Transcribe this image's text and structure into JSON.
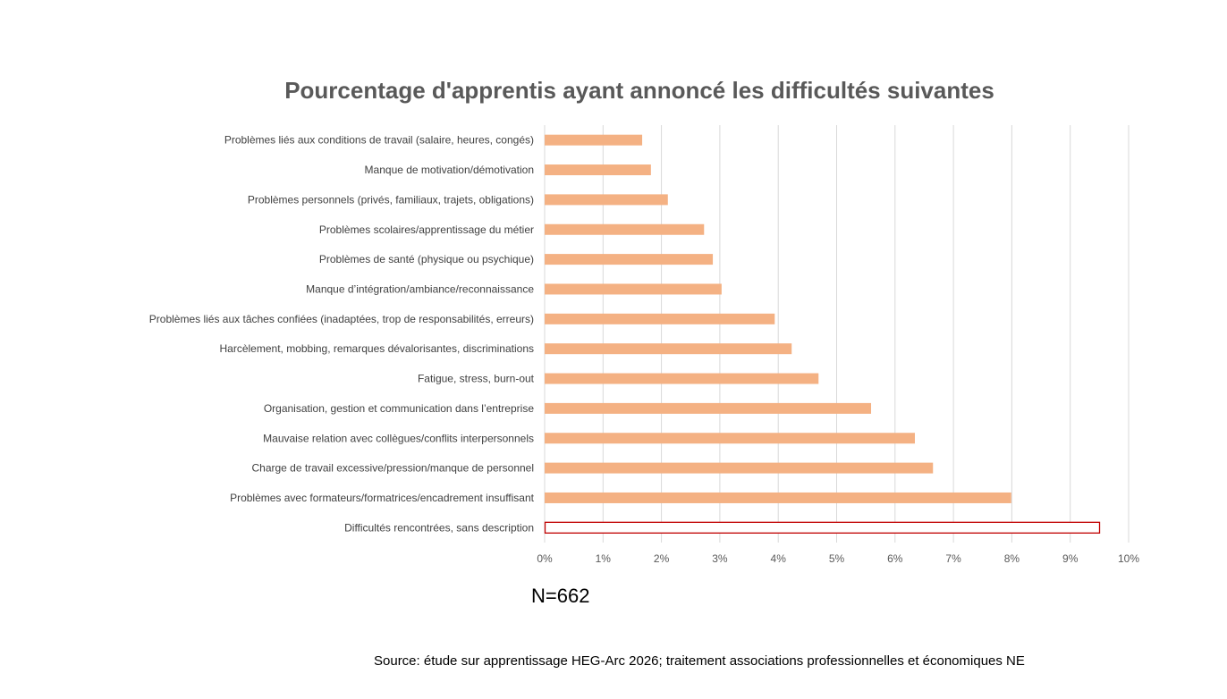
{
  "chart_data": {
    "type": "bar",
    "orientation": "horizontal",
    "title": "Pourcentage d'apprentis ayant annoncé les difficultés suivantes",
    "categories": [
      "Problèmes liés aux conditions de travail (salaire, heures, congés)",
      "Manque de motivation/démotivation",
      "Problèmes personnels (privés, familiaux, trajets, obligations)",
      "Problèmes scolaires/apprentissage du métier",
      "Problèmes de santé (physique ou psychique)",
      "Manque d’intégration/ambiance/reconnaissance",
      "Problèmes liés aux tâches confiées (inadaptées, trop de responsabilités, erreurs)",
      "Harcèlement, mobbing, remarques dévalorisantes, discriminations",
      "Fatigue, stress, burn-out",
      "Organisation, gestion et communication dans l’entreprise",
      "Mauvaise relation avec collègues/conflits interpersonnels",
      "Charge de travail excessive/pression/manque de personnel",
      "Problèmes avec formateurs/formatrices/encadrement insuffisant",
      "Difficultés rencontrées, sans description"
    ],
    "values": [
      1.67,
      1.82,
      2.11,
      2.73,
      2.88,
      3.03,
      3.94,
      4.23,
      4.69,
      5.59,
      6.34,
      6.65,
      7.99,
      9.51
    ],
    "highlighted": [
      false,
      false,
      false,
      false,
      false,
      false,
      false,
      false,
      false,
      false,
      false,
      false,
      false,
      true
    ],
    "xlim": [
      0,
      10
    ],
    "xticks": [
      "0%",
      "1%",
      "2%",
      "3%",
      "4%",
      "5%",
      "6%",
      "7%",
      "8%",
      "9%",
      "10%"
    ],
    "xlabel": "",
    "ylabel": "",
    "grid": true,
    "colors": {
      "bar": "#F4B183",
      "highlight_stroke": "#C00000",
      "grid": "#D9D9D9"
    }
  },
  "note": "N=662",
  "source": "Source: étude sur apprentissage HEG-Arc 2026; traitement associations professionnelles et économiques NE"
}
